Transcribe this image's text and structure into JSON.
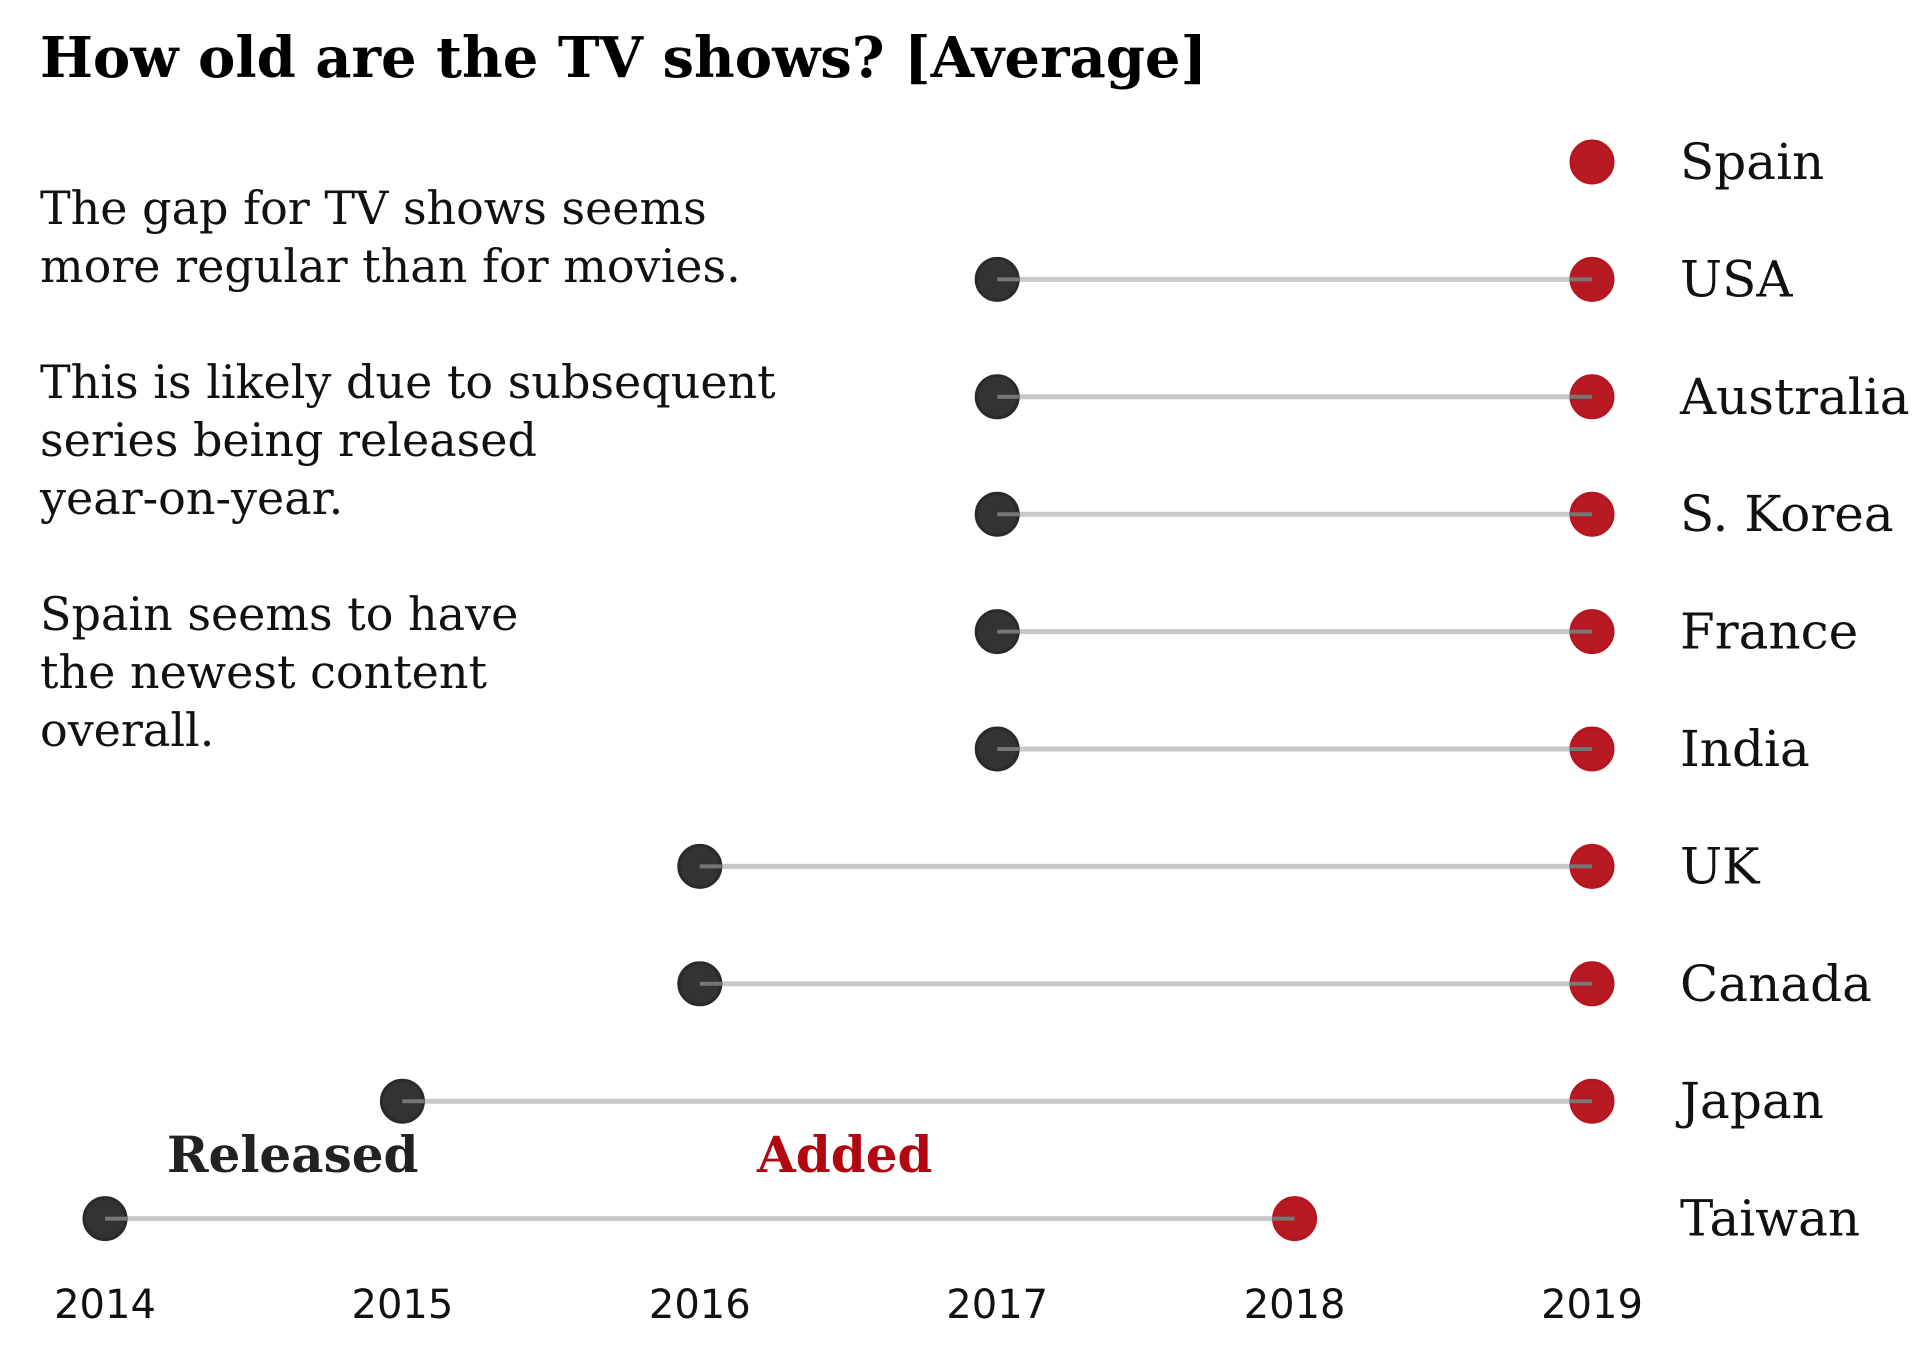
{
  "chart_data": {
    "type": "dumbbell",
    "title": "How old are the TV shows? [Average]",
    "annotation_lines": [
      "The gap for TV shows seems",
      "more regular than for movies.",
      "",
      "This is likely due to subsequent",
      "series being released",
      "year-on-year.",
      "",
      "Spain seems to have",
      "the newest content",
      "overall."
    ],
    "legend": {
      "released": "Released",
      "added": "Added"
    },
    "colors": {
      "released": "#222222",
      "added": "#b20710",
      "connector": "#c8c8c8"
    },
    "x_ticks": [
      2014,
      2015,
      2016,
      2017,
      2018,
      2019
    ],
    "xlim": [
      2014,
      2019
    ],
    "categories": [
      "Spain",
      "USA",
      "Australia",
      "S. Korea",
      "France",
      "India",
      "UK",
      "Canada",
      "Japan",
      "Taiwan"
    ],
    "series": [
      {
        "name": "Released",
        "values": [
          2019,
          2017,
          2017,
          2017,
          2017,
          2017,
          2016,
          2016,
          2015,
          2014
        ]
      },
      {
        "name": "Added",
        "values": [
          2019,
          2019,
          2019,
          2019,
          2019,
          2019,
          2019,
          2019,
          2019,
          2018
        ]
      }
    ]
  }
}
